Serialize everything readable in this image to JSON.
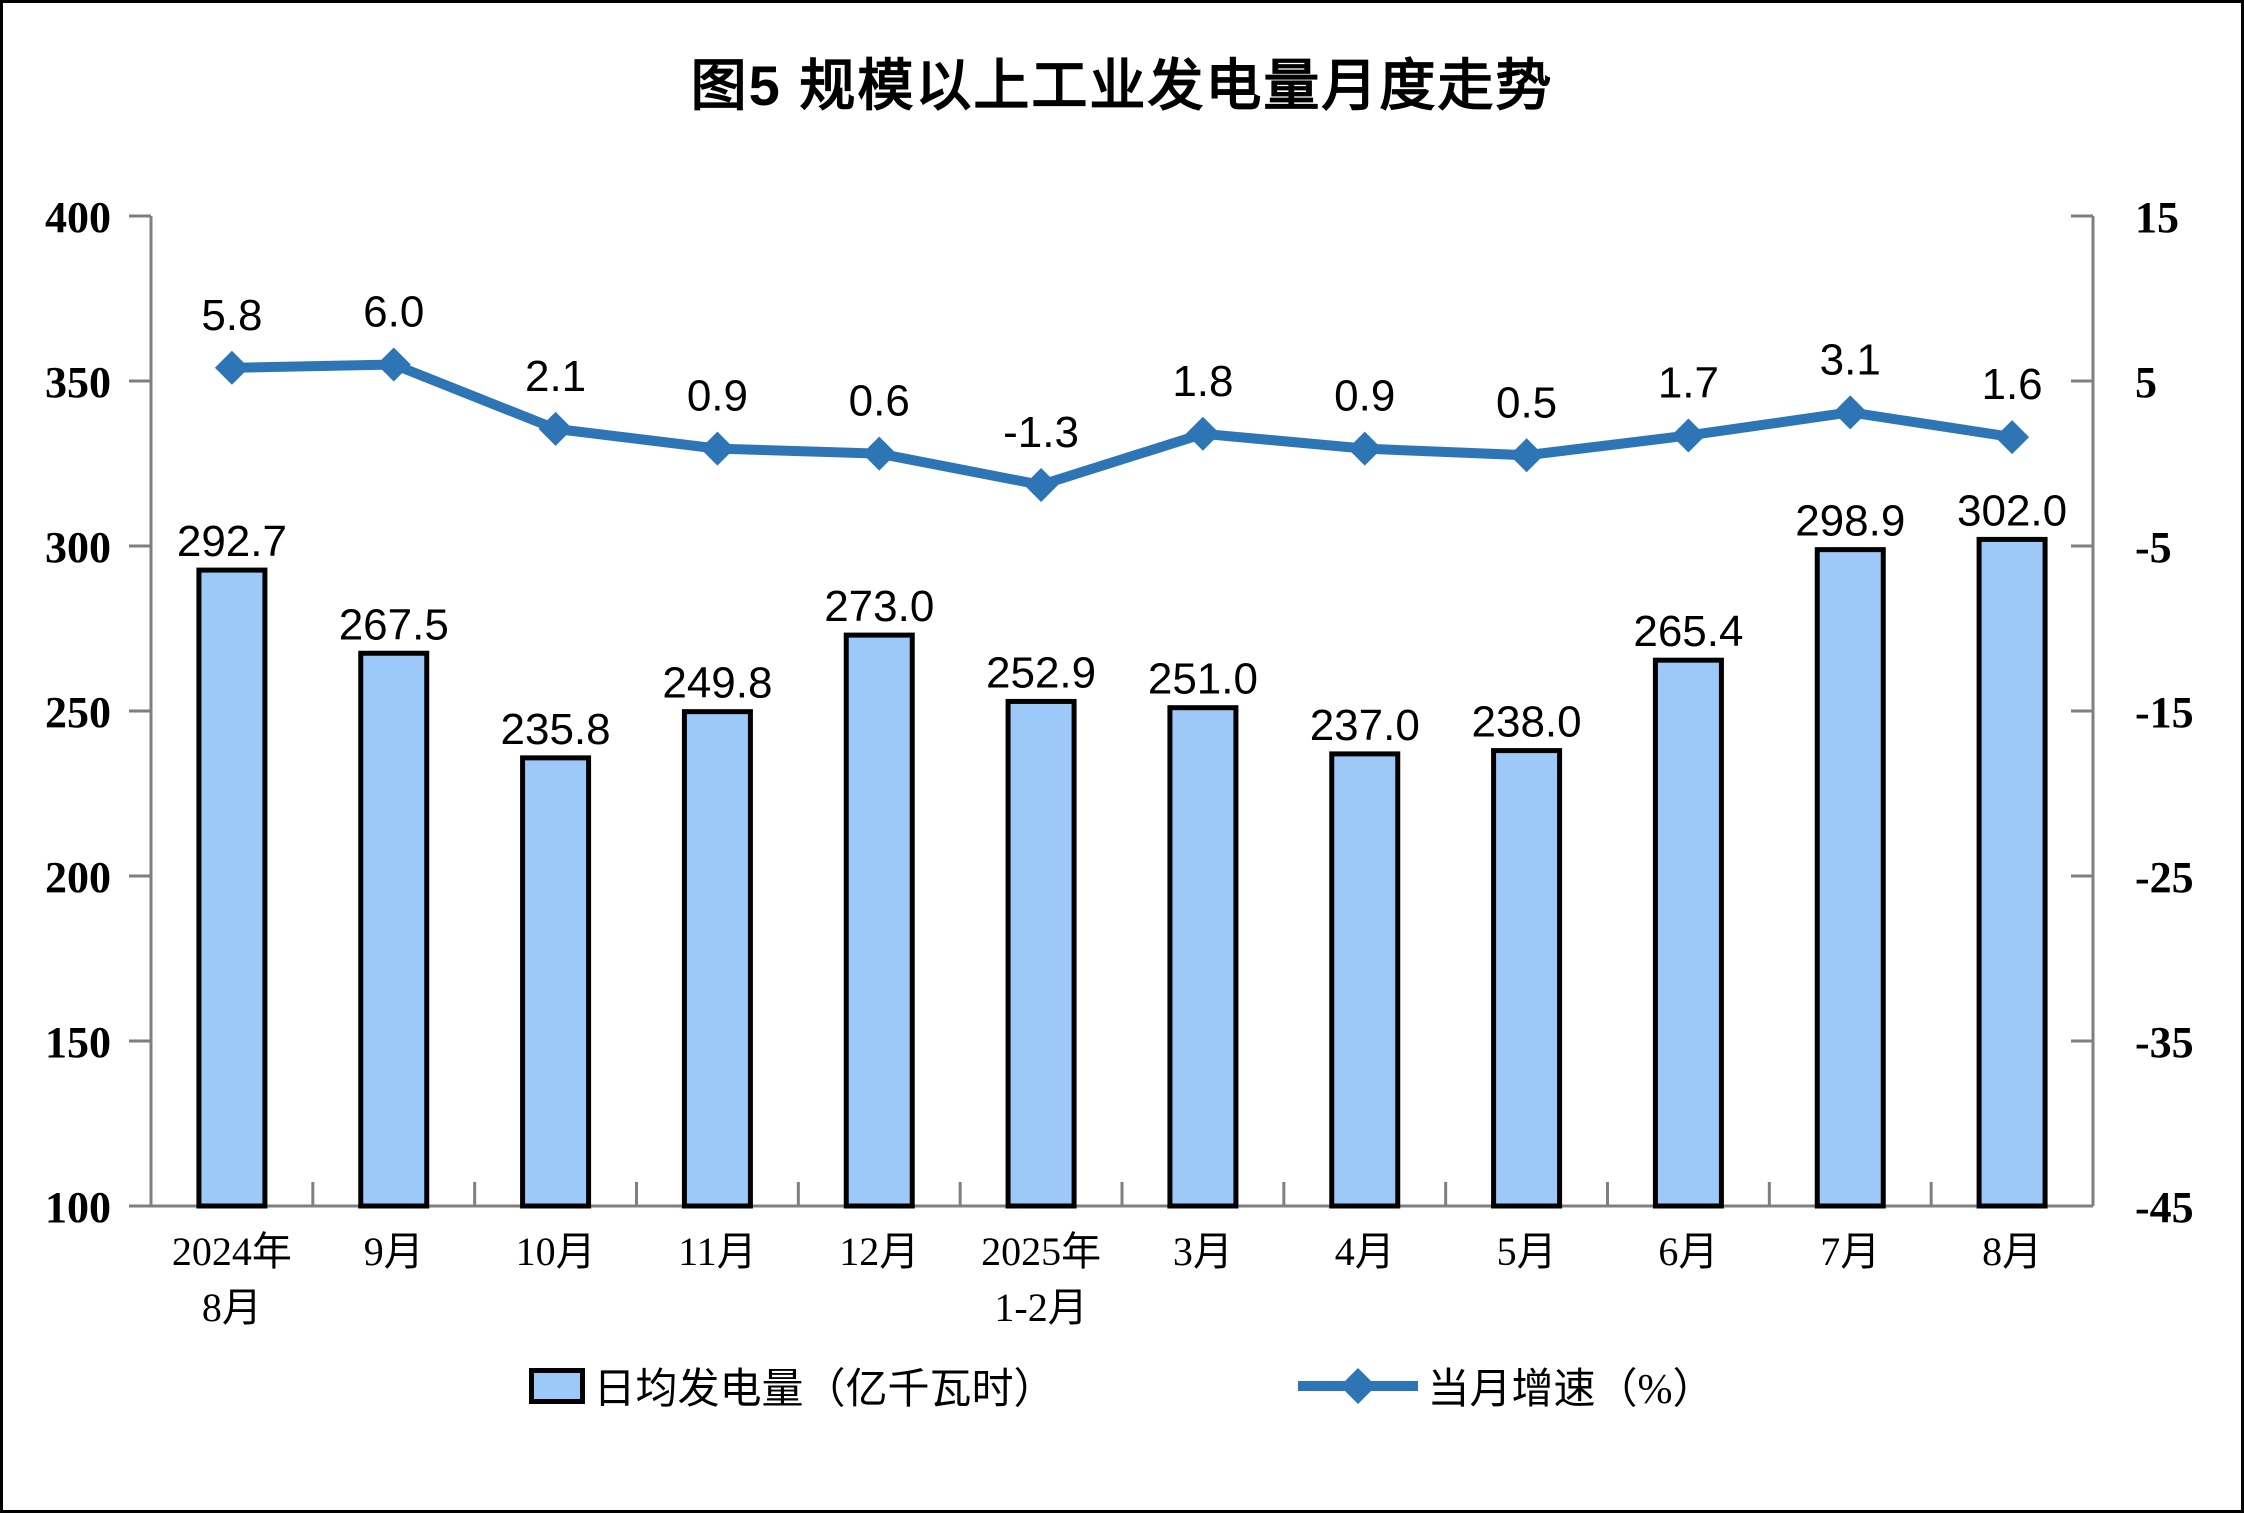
{
  "title": "图5 规模以上工业发电量月度走势",
  "legend": {
    "bar_label": "日均发电量（亿千瓦时）",
    "line_label": "当月增速（%）"
  },
  "colors": {
    "bar_fill": "#9CC9F8",
    "bar_border": "#000000",
    "line": "#2E75B6",
    "axis": "#7F7F7F",
    "text": "#000000"
  },
  "chart_data": {
    "type": "bar",
    "combo": "bar+line",
    "title": "图5 规模以上工业发电量月度走势",
    "categories": [
      "2024年\n8月",
      "9月",
      "10月",
      "11月",
      "12月",
      "2025年\n1-2月",
      "3月",
      "4月",
      "5月",
      "6月",
      "7月",
      "8月"
    ],
    "series": [
      {
        "name": "日均发电量（亿千瓦时）",
        "type": "bar",
        "axis": "left",
        "values": [
          292.7,
          267.5,
          235.8,
          249.8,
          273.0,
          252.9,
          251.0,
          237.0,
          238.0,
          265.4,
          298.9,
          302.0
        ]
      },
      {
        "name": "当月增速（%）",
        "type": "line",
        "axis": "right",
        "values": [
          5.8,
          6.0,
          2.1,
          0.9,
          0.6,
          -1.3,
          1.8,
          0.9,
          0.5,
          1.7,
          3.1,
          1.6
        ]
      }
    ],
    "left_axis": {
      "min": 100,
      "max": 400,
      "step": 50,
      "tick_labels": [
        "400",
        "350",
        "300",
        "250",
        "200",
        "150",
        "100"
      ]
    },
    "right_axis": {
      "min": -45,
      "max": 15,
      "step": 10,
      "tick_labels": [
        "15",
        "5",
        "-5",
        "-15",
        "-25",
        "-35",
        "-45"
      ]
    },
    "grid": false,
    "legend_position": "bottom",
    "data_labels": true
  }
}
